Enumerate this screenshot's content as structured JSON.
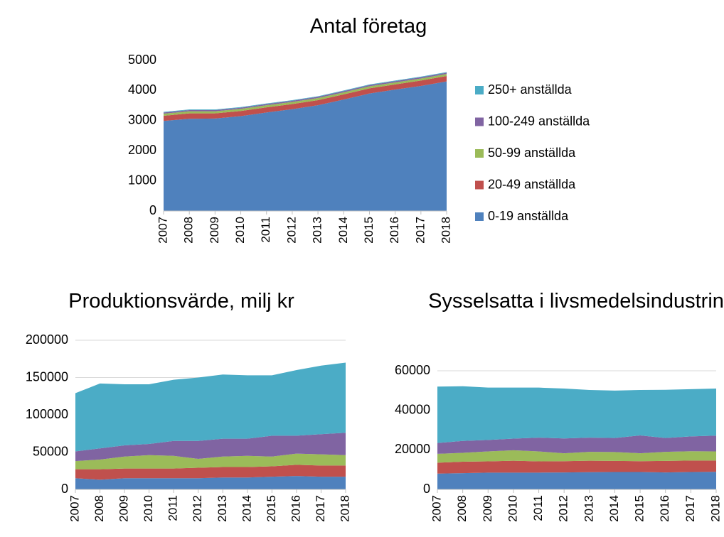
{
  "chart_data": [
    {
      "type": "stacked_area",
      "title": "Antal företag",
      "categories": [
        "2007",
        "2008",
        "2009",
        "2010",
        "2011",
        "2012",
        "2013",
        "2014",
        "2015",
        "2016",
        "2017",
        "2018"
      ],
      "ylim": [
        0,
        5000
      ],
      "yticks": [
        0,
        1000,
        2000,
        3000,
        4000,
        5000
      ],
      "grid": false,
      "legend": "right",
      "series": [
        {
          "name": "0-19 anställda",
          "color": "#4f81bd",
          "values": [
            2990,
            3060,
            3070,
            3150,
            3270,
            3380,
            3510,
            3700,
            3900,
            4030,
            4150,
            4300
          ]
        },
        {
          "name": "20-49 anställda",
          "color": "#c0504d",
          "values": [
            170,
            180,
            170,
            170,
            170,
            170,
            170,
            170,
            170,
            170,
            180,
            180
          ]
        },
        {
          "name": "50-99 anställda",
          "color": "#9bbb59",
          "values": [
            70,
            70,
            70,
            70,
            70,
            70,
            70,
            70,
            70,
            70,
            70,
            70
          ]
        },
        {
          "name": "100-249 anställda",
          "color": "#8064a2",
          "values": [
            40,
            40,
            40,
            40,
            40,
            40,
            40,
            40,
            40,
            40,
            40,
            40
          ]
        },
        {
          "name": "250+ anställda",
          "color": "#4bacc6",
          "values": [
            20,
            20,
            20,
            20,
            20,
            20,
            20,
            20,
            20,
            20,
            20,
            20
          ]
        }
      ]
    },
    {
      "type": "stacked_area",
      "title": "Produktionsvärde, milj kr",
      "categories": [
        "2007",
        "2008",
        "2009",
        "2010",
        "2011",
        "2012",
        "2013",
        "2014",
        "2015",
        "2016",
        "2017",
        "2018"
      ],
      "ylim": [
        0,
        200000
      ],
      "yticks": [
        0,
        50000,
        100000,
        150000,
        200000
      ],
      "grid": true,
      "series": [
        {
          "color": "#4f81bd",
          "values": [
            15000,
            13000,
            15000,
            15000,
            15000,
            15000,
            16000,
            16000,
            17000,
            18000,
            17000,
            17000
          ]
        },
        {
          "color": "#c0504d",
          "values": [
            12000,
            14000,
            13000,
            13000,
            13000,
            14000,
            14000,
            14000,
            14000,
            15000,
            15000,
            15000
          ]
        },
        {
          "color": "#9bbb59",
          "values": [
            11000,
            13000,
            16000,
            18000,
            17000,
            12000,
            14000,
            15000,
            13000,
            15000,
            15000,
            14000
          ]
        },
        {
          "color": "#8064a2",
          "values": [
            13000,
            15000,
            15000,
            15000,
            20000,
            24000,
            24000,
            23000,
            28000,
            24000,
            27000,
            30000
          ]
        },
        {
          "color": "#4bacc6",
          "values": [
            78000,
            87000,
            82000,
            80000,
            82000,
            85000,
            86000,
            85000,
            81000,
            88000,
            92000,
            94000
          ]
        }
      ]
    },
    {
      "type": "stacked_area",
      "title": "Sysselsatta i livsmedelsindustrin",
      "categories": [
        "2007",
        "2008",
        "2009",
        "2010",
        "2011",
        "2012",
        "2013",
        "2014",
        "2015",
        "2016",
        "2017",
        "2018"
      ],
      "ylim": [
        0,
        60000
      ],
      "yticks": [
        0,
        20000,
        40000,
        60000
      ],
      "grid": true,
      "series": [
        {
          "color": "#4f81bd",
          "values": [
            8000,
            8200,
            8500,
            8500,
            8500,
            8600,
            8700,
            8800,
            8800,
            8600,
            8800,
            8900
          ]
        },
        {
          "color": "#c0504d",
          "values": [
            5500,
            5800,
            5700,
            6000,
            5700,
            5700,
            5800,
            5600,
            5500,
            5800,
            5800,
            5700
          ]
        },
        {
          "color": "#9bbb59",
          "values": [
            4500,
            4500,
            5000,
            5300,
            5000,
            4000,
            4500,
            4500,
            4000,
            4600,
            4700,
            4600
          ]
        },
        {
          "color": "#8064a2",
          "values": [
            5500,
            6000,
            5800,
            5900,
            7000,
            7500,
            7200,
            7100,
            9000,
            7000,
            7500,
            8000
          ]
        },
        {
          "color": "#4bacc6",
          "values": [
            28500,
            27700,
            26500,
            25800,
            25300,
            25200,
            24100,
            24000,
            23000,
            24400,
            23900,
            23800
          ]
        }
      ]
    }
  ]
}
